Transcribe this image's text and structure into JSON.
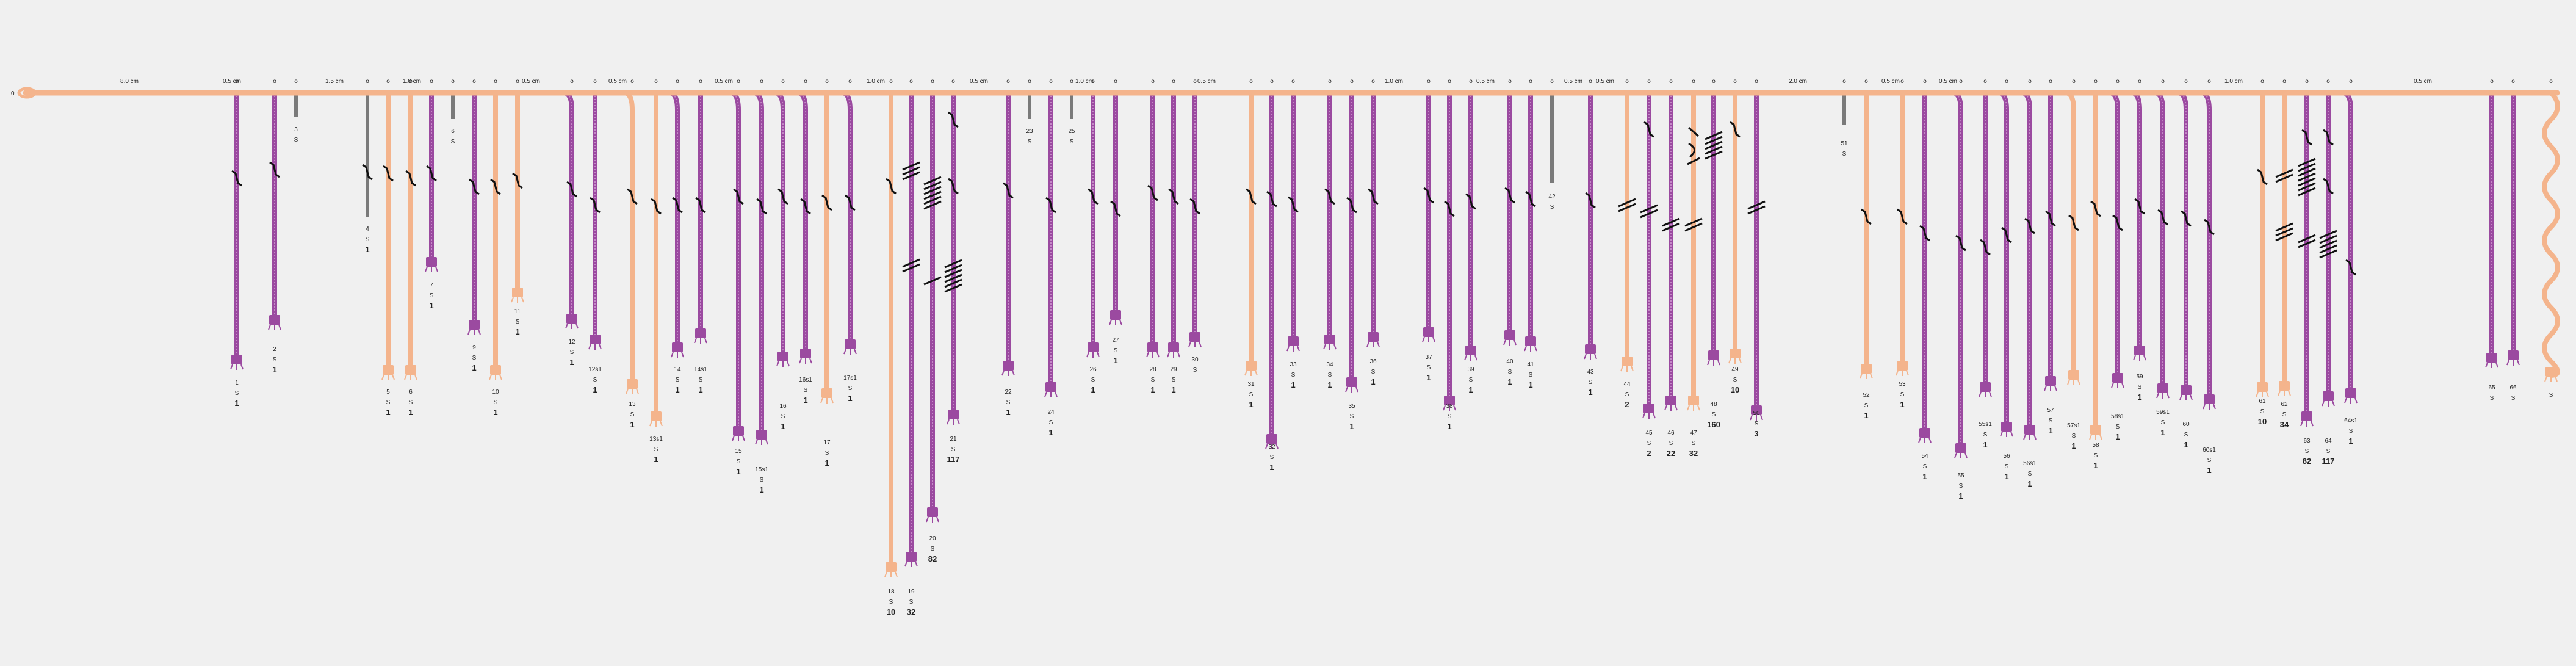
{
  "primary_cord": {
    "color": "#f4b48c",
    "start_label": "0",
    "spacing_labels": [
      "8.0 cm",
      "0.5 cm",
      "1.5 cm",
      "1.0 cm",
      "0.5 cm",
      "0.5 cm",
      "0.5 cm",
      "1.0 cm",
      "0.5 cm",
      "1.0 cm",
      "0.5 cm",
      "1.0 cm",
      "0.5 cm",
      "0.5 cm",
      "0.5 cm",
      "2.0 cm",
      "0.5 cm",
      "0.5 cm",
      "1.0 cm",
      "0.5 cm"
    ]
  },
  "colors": {
    "purple": "#9b4aa0",
    "peach": "#f4b48c",
    "gray": "#7a7a7a",
    "knot": "#111111"
  },
  "cords": [
    {
      "id": "1",
      "color": "purple",
      "twist": "S",
      "value": "1"
    },
    {
      "id": "2",
      "color": "purple",
      "twist": "S",
      "value": "1"
    },
    {
      "id": "3",
      "color": "gray",
      "twist": "S",
      "value": ""
    },
    {
      "id": "4",
      "color": "gray",
      "twist": "S",
      "value": "1"
    },
    {
      "id": "5",
      "color": "peach",
      "twist": "S",
      "value": "1"
    },
    {
      "id": "6",
      "color": "peach",
      "twist": "S",
      "value": "1"
    },
    {
      "id": "6",
      "color": "gray",
      "twist": "S",
      "value": ""
    },
    {
      "id": "7",
      "color": "purple",
      "twist": "S",
      "value": "1"
    },
    {
      "id": "9",
      "color": "purple",
      "twist": "S",
      "value": "1"
    },
    {
      "id": "10",
      "color": "peach",
      "twist": "S",
      "value": "1"
    },
    {
      "id": "11",
      "color": "peach",
      "twist": "S",
      "value": "1"
    },
    {
      "id": "12",
      "color": "purple",
      "twist": "S",
      "value": "1"
    },
    {
      "id": "12s1",
      "color": "purple",
      "twist": "S",
      "value": "1"
    },
    {
      "id": "13",
      "color": "peach",
      "twist": "S",
      "value": "1"
    },
    {
      "id": "13s1",
      "color": "peach",
      "twist": "S",
      "value": "1"
    },
    {
      "id": "14",
      "color": "purple",
      "twist": "S",
      "value": "1"
    },
    {
      "id": "14s1",
      "color": "purple",
      "twist": "S",
      "value": "1"
    },
    {
      "id": "15",
      "color": "purple",
      "twist": "S",
      "value": "1"
    },
    {
      "id": "15s1",
      "color": "purple",
      "twist": "S",
      "value": "1"
    },
    {
      "id": "16",
      "color": "purple",
      "twist": "S",
      "value": "1"
    },
    {
      "id": "16s1",
      "color": "purple",
      "twist": "S",
      "value": "1"
    },
    {
      "id": "17",
      "color": "peach",
      "twist": "S",
      "value": "1"
    },
    {
      "id": "17s1",
      "color": "purple",
      "twist": "S",
      "value": "1"
    },
    {
      "id": "18",
      "color": "peach",
      "twist": "S",
      "value": "10"
    },
    {
      "id": "19",
      "color": "purple",
      "twist": "S",
      "value": "32"
    },
    {
      "id": "20",
      "color": "purple",
      "twist": "S",
      "value": "82"
    },
    {
      "id": "21",
      "color": "purple",
      "twist": "S",
      "value": "117"
    },
    {
      "id": "22",
      "color": "purple",
      "twist": "S",
      "value": "1"
    },
    {
      "id": "23",
      "color": "gray",
      "twist": "S",
      "value": ""
    },
    {
      "id": "24",
      "color": "purple",
      "twist": "S",
      "value": "1"
    },
    {
      "id": "25",
      "color": "gray",
      "twist": "S",
      "value": ""
    },
    {
      "id": "26",
      "color": "purple",
      "twist": "S",
      "value": "1"
    },
    {
      "id": "27",
      "color": "purple",
      "twist": "S",
      "value": "1"
    },
    {
      "id": "28",
      "color": "purple",
      "twist": "S",
      "value": "1"
    },
    {
      "id": "29",
      "color": "purple",
      "twist": "S",
      "value": "1"
    },
    {
      "id": "30",
      "color": "purple",
      "twist": "S",
      "value": ""
    },
    {
      "id": "31",
      "color": "peach",
      "twist": "S",
      "value": "1"
    },
    {
      "id": "32",
      "color": "purple",
      "twist": "S",
      "value": "1"
    },
    {
      "id": "33",
      "color": "purple",
      "twist": "S",
      "value": "1"
    },
    {
      "id": "34",
      "color": "purple",
      "twist": "S",
      "value": "1"
    },
    {
      "id": "35",
      "color": "purple",
      "twist": "S",
      "value": "1"
    },
    {
      "id": "36",
      "color": "purple",
      "twist": "S",
      "value": "1"
    },
    {
      "id": "37",
      "color": "purple",
      "twist": "S",
      "value": "1"
    },
    {
      "id": "38",
      "color": "purple",
      "twist": "S",
      "value": "1"
    },
    {
      "id": "39",
      "color": "purple",
      "twist": "S",
      "value": "1"
    },
    {
      "id": "40",
      "color": "purple",
      "twist": "S",
      "value": "1"
    },
    {
      "id": "41",
      "color": "purple",
      "twist": "S",
      "value": "1"
    },
    {
      "id": "42",
      "color": "gray",
      "twist": "S",
      "value": ""
    },
    {
      "id": "43",
      "color": "purple",
      "twist": "S",
      "value": "1"
    },
    {
      "id": "44",
      "color": "peach",
      "twist": "S",
      "value": "2"
    },
    {
      "id": "45",
      "color": "purple",
      "twist": "S",
      "value": "2"
    },
    {
      "id": "46",
      "color": "purple",
      "twist": "S",
      "value": "22"
    },
    {
      "id": "47",
      "color": "peach",
      "twist": "S",
      "value": "32"
    },
    {
      "id": "48",
      "color": "purple",
      "twist": "S",
      "value": "160"
    },
    {
      "id": "49",
      "color": "peach",
      "twist": "S",
      "value": "10"
    },
    {
      "id": "50",
      "color": "purple",
      "twist": "S",
      "value": "3"
    },
    {
      "id": "51",
      "color": "gray",
      "twist": "S",
      "value": ""
    },
    {
      "id": "52",
      "color": "peach",
      "twist": "S",
      "value": "1"
    },
    {
      "id": "53",
      "color": "peach",
      "twist": "S",
      "value": "1"
    },
    {
      "id": "54",
      "color": "purple",
      "twist": "S",
      "value": "1"
    },
    {
      "id": "55",
      "color": "purple",
      "twist": "S",
      "value": "1"
    },
    {
      "id": "55s1",
      "color": "purple",
      "twist": "S",
      "value": "1"
    },
    {
      "id": "56",
      "color": "purple",
      "twist": "S",
      "value": "1"
    },
    {
      "id": "56s1",
      "color": "purple",
      "twist": "S",
      "value": "1"
    },
    {
      "id": "57",
      "color": "purple",
      "twist": "S",
      "value": "1"
    },
    {
      "id": "57s1",
      "color": "peach",
      "twist": "S",
      "value": "1"
    },
    {
      "id": "58",
      "color": "peach",
      "twist": "S",
      "value": "1"
    },
    {
      "id": "58s1",
      "color": "purple",
      "twist": "S",
      "value": "1"
    },
    {
      "id": "59",
      "color": "purple",
      "twist": "S",
      "value": "1"
    },
    {
      "id": "59s1",
      "color": "purple",
      "twist": "S",
      "value": "1"
    },
    {
      "id": "60",
      "color": "purple",
      "twist": "S",
      "value": "1"
    },
    {
      "id": "60s1",
      "color": "purple",
      "twist": "S",
      "value": "1"
    },
    {
      "id": "61",
      "color": "peach",
      "twist": "S",
      "value": "10"
    },
    {
      "id": "62",
      "color": "peach",
      "twist": "S",
      "value": "34"
    },
    {
      "id": "63",
      "color": "purple",
      "twist": "S",
      "value": "82"
    },
    {
      "id": "64",
      "color": "purple",
      "twist": "S",
      "value": "117"
    },
    {
      "id": "64s1",
      "color": "purple",
      "twist": "S",
      "value": "1"
    },
    {
      "id": "65",
      "color": "purple",
      "twist": "S",
      "value": ""
    },
    {
      "id": "66",
      "color": "purple",
      "twist": "S",
      "value": ""
    },
    {
      "id": "",
      "color": "peach",
      "twist": "S",
      "value": ""
    }
  ]
}
